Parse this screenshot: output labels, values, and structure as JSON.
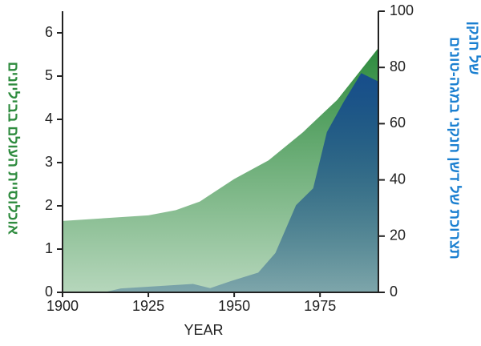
{
  "chart_data": {
    "type": "area",
    "xlabel": "YEAR",
    "ylabel": "אוכלוסיית העולם בביליונים",
    "y2label": [
      "תצרוכת של דשן חנקני במגה-טונים",
      "של חנקן"
    ],
    "xlim": [
      1900,
      1992
    ],
    "xticks": [
      1900,
      1925,
      1950,
      1975
    ],
    "ylim": [
      0,
      6.5
    ],
    "yticks": [
      0,
      1,
      2,
      3,
      4,
      5,
      6
    ],
    "y2lim": [
      0,
      100
    ],
    "y2ticks": [
      0,
      20,
      40,
      60,
      80,
      100
    ],
    "series": [
      {
        "color": "#2e8b3e",
        "x": [
          1900,
          1925,
          1933,
          1940,
          1950,
          1960,
          1970,
          1980,
          1992
        ],
        "values": [
          1.65,
          1.78,
          1.9,
          2.1,
          2.62,
          3.05,
          3.7,
          4.45,
          5.65
        ]
      },
      {
        "color": "#174d8c",
        "axis": "y2",
        "x": [
          1912,
          1917,
          1938,
          1943,
          1949,
          1957,
          1962,
          1968,
          1973,
          1977,
          1982,
          1987,
          1992
        ],
        "values": [
          0,
          1.4,
          3,
          1.5,
          4,
          7,
          14,
          31,
          37,
          57,
          68,
          78,
          75
        ]
      }
    ]
  }
}
